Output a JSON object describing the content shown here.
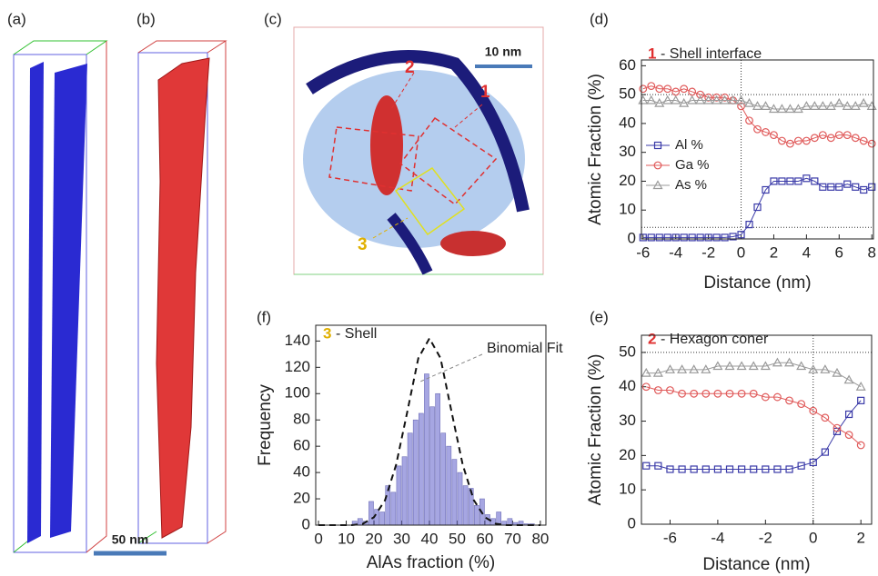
{
  "images": {
    "a": {
      "label": "(a)"
    },
    "b": {
      "label": "(b)",
      "scale_bar": "50 nm"
    },
    "c": {
      "label": "(c)",
      "scale_bar": "10 nm",
      "markers": [
        "2",
        "1",
        "3"
      ]
    }
  },
  "chart_data": [
    {
      "type": "line",
      "panel": "(d)",
      "title_number": "1",
      "title": "- Shell interface",
      "xlabel": "Distance (nm)",
      "ylabel": "Atomic Fraction (%)",
      "xlim": [
        -6.1,
        8.1
      ],
      "ylim": [
        0,
        62
      ],
      "xticks": [
        -6,
        -4,
        -2,
        0,
        2,
        4,
        6,
        8
      ],
      "yticks": [
        0,
        10,
        20,
        30,
        40,
        50,
        60
      ],
      "hlines": [
        50,
        4
      ],
      "vlines": [
        0
      ],
      "legend": "left",
      "x": [
        -6,
        -5.5,
        -5,
        -4.5,
        -4,
        -3.5,
        -3,
        -2.5,
        -2,
        -1.5,
        -1,
        -0.5,
        0,
        0.5,
        1,
        1.5,
        2,
        2.5,
        3,
        3.5,
        4,
        4.5,
        5,
        5.5,
        6,
        6.5,
        7,
        7.5,
        8
      ],
      "series": [
        {
          "name": "Al %",
          "color": "#3a3aa8",
          "marker": "square",
          "values": [
            0.5,
            0.5,
            0.5,
            0.5,
            0.5,
            0.5,
            0.5,
            0.5,
            0.5,
            0.5,
            0.5,
            0.8,
            1.5,
            5,
            11,
            17,
            20,
            20,
            20,
            20,
            21,
            20,
            18,
            18,
            18,
            19,
            18,
            17,
            18
          ]
        },
        {
          "name": "Ga %",
          "color": "#e05a5a",
          "marker": "circle",
          "values": [
            52,
            53,
            52,
            52,
            51,
            52,
            51,
            50,
            49,
            49,
            49,
            48,
            46,
            41,
            38,
            37,
            36,
            34,
            33,
            34,
            34,
            35,
            36,
            35,
            36,
            36,
            35,
            34,
            33
          ]
        },
        {
          "name": "As %",
          "color": "#9a9a9a",
          "marker": "triangle",
          "values": [
            48,
            48,
            47,
            48,
            48,
            47,
            48,
            48,
            48,
            48,
            48,
            48,
            48,
            47,
            46,
            46,
            45,
            45,
            45,
            45,
            46,
            46,
            46,
            46,
            47,
            46,
            46,
            47,
            46
          ]
        }
      ]
    },
    {
      "type": "histogram",
      "panel": "(f)",
      "title_number": "3",
      "title": "- Shell",
      "xlabel": "AlAs fraction (%)",
      "ylabel": "Frequency",
      "fit_label": "Binomial Fit",
      "xlim": [
        -1,
        82
      ],
      "ylim": [
        0,
        152
      ],
      "xticks": [
        0,
        10,
        20,
        30,
        40,
        50,
        60,
        70,
        80
      ],
      "yticks": [
        0,
        20,
        40,
        60,
        80,
        100,
        120,
        140
      ],
      "color": "#a6a6e2",
      "bins": [
        0,
        2,
        4,
        6,
        8,
        10,
        12,
        14,
        16,
        18,
        20,
        22,
        24,
        26,
        28,
        30,
        32,
        34,
        36,
        38,
        40,
        42,
        44,
        46,
        48,
        50,
        52,
        54,
        56,
        58,
        60,
        62,
        64,
        66,
        68,
        70,
        72,
        74,
        76,
        78,
        80
      ],
      "values": [
        0,
        0,
        0,
        0,
        0,
        0,
        3,
        5,
        3,
        18,
        12,
        10,
        30,
        25,
        45,
        52,
        70,
        80,
        85,
        115,
        90,
        100,
        70,
        60,
        50,
        40,
        30,
        28,
        15,
        20,
        8,
        5,
        10,
        3,
        5,
        2,
        3,
        1,
        1,
        0
      ],
      "fit": {
        "x": [
          0,
          4,
          8,
          12,
          16,
          20,
          24,
          28,
          32,
          36,
          40,
          44,
          48,
          52,
          56,
          60,
          64,
          68,
          72,
          76,
          80
        ],
        "values": [
          0,
          0,
          0,
          0,
          1,
          6,
          19,
          46,
          86,
          127,
          142,
          127,
          86,
          46,
          19,
          6,
          1,
          0,
          0,
          0,
          0
        ]
      }
    },
    {
      "type": "line",
      "panel": "(e)",
      "title_number": "2",
      "title": "- Hexagon coner",
      "xlabel": "Distance (nm)",
      "ylabel": "Atomic Fraction (%)",
      "xlim": [
        -7.2,
        2.45
      ],
      "ylim": [
        0,
        55
      ],
      "xticks": [
        -6,
        -4,
        -2,
        0,
        2
      ],
      "yticks": [
        0,
        10,
        20,
        30,
        40,
        50
      ],
      "hlines": [
        50
      ],
      "vlines": [
        0
      ],
      "x": [
        -7,
        -6.5,
        -6,
        -5.5,
        -5,
        -4.5,
        -4,
        -3.5,
        -3,
        -2.5,
        -2,
        -1.5,
        -1,
        -0.5,
        0,
        0.5,
        1,
        1.5,
        2
      ],
      "series": [
        {
          "name": "Al %",
          "color": "#3a3aa8",
          "marker": "square",
          "values": [
            17,
            17,
            16,
            16,
            16,
            16,
            16,
            16,
            16,
            16,
            16,
            16,
            16,
            17,
            18,
            21,
            27,
            32,
            36
          ]
        },
        {
          "name": "Ga %",
          "color": "#e05a5a",
          "marker": "circle",
          "values": [
            40,
            39,
            39,
            38,
            38,
            38,
            38,
            38,
            38,
            38,
            37,
            37,
            36,
            35,
            33,
            31,
            28,
            26,
            23
          ]
        },
        {
          "name": "As %",
          "color": "#9a9a9a",
          "marker": "triangle",
          "values": [
            44,
            44,
            45,
            45,
            45,
            45,
            46,
            46,
            46,
            46,
            46,
            47,
            47,
            46,
            45,
            45,
            44,
            42,
            40
          ]
        }
      ]
    }
  ]
}
